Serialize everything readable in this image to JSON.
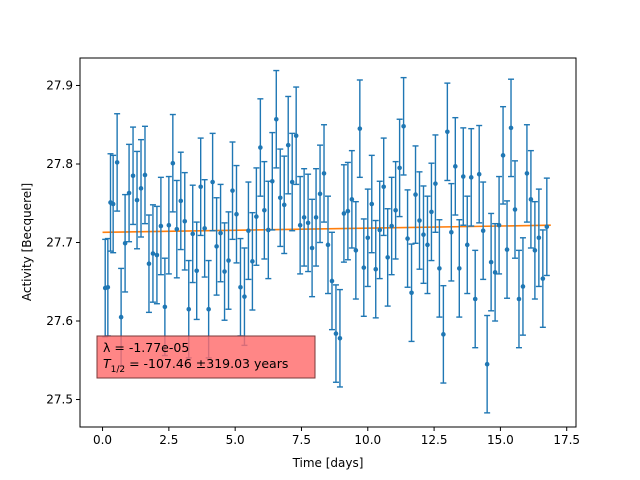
{
  "chart_data": {
    "type": "scatter",
    "title": "",
    "xlabel": "Time [days]",
    "ylabel": "Activity [Becquerel]",
    "xlim": [
      -0.85,
      17.85
    ],
    "ylim": [
      27.465,
      27.935
    ],
    "xticks": [
      0.0,
      2.5,
      5.0,
      7.5,
      10.0,
      12.5,
      15.0,
      17.5
    ],
    "xtick_labels": [
      "0.0",
      "2.5",
      "5.0",
      "7.5",
      "10.0",
      "12.5",
      "15.0",
      "17.5"
    ],
    "yticks": [
      27.5,
      27.6,
      27.7,
      27.8,
      27.9
    ],
    "ytick_labels": [
      "27.5",
      "27.6",
      "27.7",
      "27.8",
      "27.9"
    ],
    "grid": false,
    "colors": {
      "data": "#1f77b4",
      "fit": "#ff7f0e",
      "annotation_bg": "#ff6b6b"
    },
    "fit": {
      "x": [
        0.0,
        16.9
      ],
      "y": [
        27.713,
        27.722
      ]
    },
    "annotation": {
      "line1": "λ = -1.77e-05",
      "line2_prefix": "T",
      "line2_sub": "1/2",
      "line2_suffix": " = -107.46 ±319.03 years"
    },
    "series": [
      {
        "x": [
          0.1,
          0.2,
          0.3,
          0.4,
          0.55,
          0.7,
          0.85,
          1.0,
          1.15,
          1.3,
          1.45,
          1.6,
          1.75,
          1.9,
          2.05,
          2.2,
          2.35,
          2.5,
          2.65,
          2.8,
          2.95,
          3.1,
          3.25,
          3.4,
          3.55,
          3.7,
          3.85,
          4.0,
          4.15,
          4.3,
          4.45,
          4.6,
          4.75,
          4.9,
          5.05,
          5.2,
          5.35,
          5.5,
          5.65,
          5.8,
          5.95,
          6.1,
          6.25,
          6.4,
          6.55,
          6.7,
          6.85,
          7.0,
          7.15,
          7.3,
          7.45,
          7.6,
          7.75,
          7.9,
          8.05,
          8.2,
          8.35,
          8.5,
          8.65,
          8.8,
          8.95,
          9.1,
          9.25,
          9.4,
          9.55,
          9.7,
          9.85,
          10.0,
          10.15,
          10.3,
          10.45,
          10.6,
          10.75,
          10.9,
          11.05,
          11.2,
          11.35,
          11.5,
          11.65,
          11.8,
          11.95,
          12.1,
          12.25,
          12.4,
          12.55,
          12.7,
          12.85,
          13.0,
          13.15,
          13.3,
          13.45,
          13.6,
          13.75,
          13.9,
          14.05,
          14.2,
          14.35,
          14.5,
          14.65,
          14.8,
          14.95,
          15.1,
          15.25,
          15.4,
          15.55,
          15.7,
          15.85,
          16.0,
          16.15,
          16.3,
          16.45,
          16.6,
          16.75
        ],
        "y": [
          27.642,
          27.643,
          27.751,
          27.749,
          27.802,
          27.605,
          27.699,
          27.763,
          27.785,
          27.754,
          27.769,
          27.786,
          27.673,
          27.686,
          27.684,
          27.721,
          27.618,
          27.722,
          27.801,
          27.717,
          27.753,
          27.727,
          27.615,
          27.711,
          27.664,
          27.771,
          27.718,
          27.615,
          27.777,
          27.695,
          27.712,
          27.663,
          27.677,
          27.766,
          27.736,
          27.643,
          27.631,
          27.715,
          27.676,
          27.733,
          27.821,
          27.741,
          27.716,
          27.778,
          27.857,
          27.757,
          27.748,
          27.824,
          27.777,
          27.836,
          27.722,
          27.732,
          27.725,
          27.693,
          27.732,
          27.762,
          27.788,
          27.697,
          27.651,
          27.584,
          27.578,
          27.737,
          27.74,
          27.755,
          27.69,
          27.845,
          27.668,
          27.706,
          27.749,
          27.666,
          27.716,
          27.771,
          27.681,
          27.721,
          27.741,
          27.795,
          27.848,
          27.705,
          27.636,
          27.761,
          27.728,
          27.71,
          27.697,
          27.739,
          27.775,
          27.667,
          27.583,
          27.841,
          27.713,
          27.797,
          27.667,
          27.784,
          27.697,
          27.783,
          27.628,
          27.787,
          27.715,
          27.545,
          27.675,
          27.662,
          27.722,
          27.811,
          27.691,
          27.846,
          27.742,
          27.628,
          27.644,
          27.788,
          27.755,
          27.69,
          27.706,
          27.654,
          27.72
        ],
        "err": [
          0.062,
          0.062,
          0.062,
          0.062,
          0.062,
          0.062,
          0.062,
          0.062,
          0.062,
          0.062,
          0.062,
          0.062,
          0.062,
          0.062,
          0.062,
          0.062,
          0.062,
          0.062,
          0.062,
          0.062,
          0.062,
          0.062,
          0.062,
          0.062,
          0.062,
          0.062,
          0.062,
          0.062,
          0.062,
          0.062,
          0.062,
          0.062,
          0.062,
          0.062,
          0.062,
          0.062,
          0.062,
          0.062,
          0.062,
          0.062,
          0.062,
          0.062,
          0.062,
          0.062,
          0.062,
          0.062,
          0.062,
          0.062,
          0.062,
          0.062,
          0.062,
          0.062,
          0.062,
          0.062,
          0.062,
          0.062,
          0.062,
          0.062,
          0.062,
          0.062,
          0.062,
          0.062,
          0.062,
          0.062,
          0.062,
          0.062,
          0.062,
          0.062,
          0.062,
          0.062,
          0.062,
          0.062,
          0.062,
          0.062,
          0.062,
          0.062,
          0.062,
          0.062,
          0.062,
          0.062,
          0.062,
          0.062,
          0.062,
          0.062,
          0.062,
          0.062,
          0.062,
          0.062,
          0.062,
          0.062,
          0.062,
          0.062,
          0.062,
          0.062,
          0.062,
          0.062,
          0.062,
          0.062,
          0.062,
          0.062,
          0.062,
          0.062,
          0.062,
          0.062,
          0.062,
          0.062,
          0.062,
          0.062,
          0.062,
          0.062,
          0.062,
          0.062,
          0.062
        ]
      }
    ]
  }
}
